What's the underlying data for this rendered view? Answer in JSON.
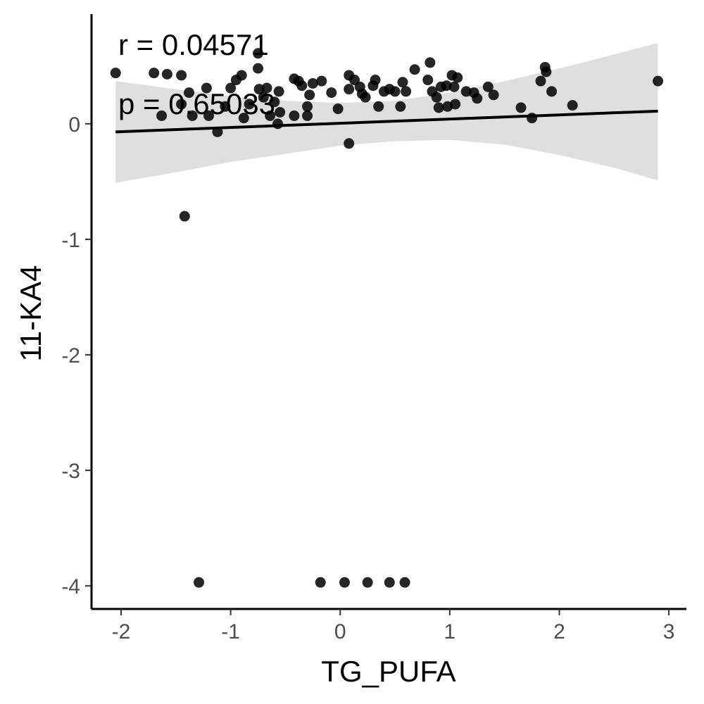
{
  "chart_data": {
    "type": "scatter",
    "title": "",
    "xlabel": "TG_PUFA",
    "ylabel": "11-KA4",
    "xlim": [
      -2.27,
      3.16
    ],
    "ylim": [
      -4.2,
      0.95
    ],
    "x_ticks": [
      -2,
      -1,
      0,
      1,
      2,
      3
    ],
    "x_tick_labels": [
      "-2",
      "-1",
      "0",
      "1",
      "2",
      "3"
    ],
    "y_ticks": [
      0,
      -1,
      -2,
      -3,
      -4
    ],
    "y_tick_labels": [
      "0",
      "-1",
      "-2",
      "-3",
      "-4"
    ],
    "grid": false,
    "legend": "none",
    "annotations": [
      "r = 0.04571",
      "p = 0.65033"
    ],
    "point_color": "#000000",
    "band_color": "#d9d9d9",
    "line_color": "#000000",
    "fit_line": {
      "x": [
        -2.05,
        2.9
      ],
      "y": [
        -0.07,
        0.11
      ]
    },
    "confidence_band": {
      "x": [
        -2.05,
        -1.5,
        -1.0,
        -0.5,
        0.0,
        0.5,
        1.0,
        1.5,
        2.0,
        2.5,
        2.9
      ],
      "upper": [
        0.37,
        0.3,
        0.24,
        0.2,
        0.18,
        0.2,
        0.27,
        0.37,
        0.48,
        0.6,
        0.7
      ],
      "lower": [
        -0.51,
        -0.42,
        -0.33,
        -0.26,
        -0.19,
        -0.15,
        -0.14,
        -0.18,
        -0.27,
        -0.38,
        -0.49
      ]
    },
    "points": [
      {
        "x": -2.05,
        "y": 0.44
      },
      {
        "x": -1.7,
        "y": 0.44
      },
      {
        "x": -1.58,
        "y": 0.43
      },
      {
        "x": -1.45,
        "y": 0.42
      },
      {
        "x": -1.63,
        "y": 0.07
      },
      {
        "x": -1.45,
        "y": 0.17
      },
      {
        "x": -1.38,
        "y": 0.27
      },
      {
        "x": -1.35,
        "y": 0.07
      },
      {
        "x": -1.22,
        "y": 0.31
      },
      {
        "x": -1.2,
        "y": 0.07
      },
      {
        "x": -1.12,
        "y": -0.07
      },
      {
        "x": -1.05,
        "y": 0.15
      },
      {
        "x": -1.0,
        "y": 0.31
      },
      {
        "x": -0.95,
        "y": 0.38
      },
      {
        "x": -0.9,
        "y": 0.42
      },
      {
        "x": -0.88,
        "y": 0.05
      },
      {
        "x": -0.83,
        "y": 0.17
      },
      {
        "x": -0.75,
        "y": 0.61
      },
      {
        "x": -0.75,
        "y": 0.48
      },
      {
        "x": -0.74,
        "y": 0.3
      },
      {
        "x": -0.7,
        "y": 0.23
      },
      {
        "x": -0.67,
        "y": 0.31
      },
      {
        "x": -0.64,
        "y": 0.07
      },
      {
        "x": -0.6,
        "y": 0.19
      },
      {
        "x": -0.57,
        "y": 0.0
      },
      {
        "x": -0.56,
        "y": 0.28
      },
      {
        "x": -0.55,
        "y": 0.1
      },
      {
        "x": -0.42,
        "y": 0.39
      },
      {
        "x": -0.42,
        "y": 0.07
      },
      {
        "x": -0.38,
        "y": 0.37
      },
      {
        "x": -0.35,
        "y": 0.33
      },
      {
        "x": -0.3,
        "y": 0.15
      },
      {
        "x": -0.3,
        "y": 0.07
      },
      {
        "x": -0.28,
        "y": 0.25
      },
      {
        "x": -0.25,
        "y": 0.35
      },
      {
        "x": -0.17,
        "y": 0.37
      },
      {
        "x": -0.08,
        "y": 0.27
      },
      {
        "x": -0.02,
        "y": 0.13
      },
      {
        "x": 0.08,
        "y": 0.42
      },
      {
        "x": 0.08,
        "y": 0.3
      },
      {
        "x": 0.08,
        "y": -0.17
      },
      {
        "x": 0.13,
        "y": 0.38
      },
      {
        "x": 0.18,
        "y": 0.32
      },
      {
        "x": 0.2,
        "y": 0.26
      },
      {
        "x": 0.23,
        "y": 0.23
      },
      {
        "x": 0.3,
        "y": 0.33
      },
      {
        "x": 0.32,
        "y": 0.38
      },
      {
        "x": 0.35,
        "y": 0.15
      },
      {
        "x": 0.4,
        "y": 0.28
      },
      {
        "x": 0.45,
        "y": 0.3
      },
      {
        "x": 0.5,
        "y": 0.28
      },
      {
        "x": 0.55,
        "y": 0.15
      },
      {
        "x": 0.57,
        "y": 0.36
      },
      {
        "x": 0.6,
        "y": 0.28
      },
      {
        "x": 0.68,
        "y": 0.47
      },
      {
        "x": 0.8,
        "y": 0.38
      },
      {
        "x": 0.82,
        "y": 0.53
      },
      {
        "x": 0.84,
        "y": 0.28
      },
      {
        "x": 0.88,
        "y": 0.23
      },
      {
        "x": 0.9,
        "y": 0.14
      },
      {
        "x": 0.92,
        "y": 0.32
      },
      {
        "x": 0.97,
        "y": 0.33
      },
      {
        "x": 0.98,
        "y": 0.15
      },
      {
        "x": 1.02,
        "y": 0.42
      },
      {
        "x": 1.04,
        "y": 0.32
      },
      {
        "x": 1.05,
        "y": 0.17
      },
      {
        "x": 1.07,
        "y": 0.4
      },
      {
        "x": 1.15,
        "y": 0.28
      },
      {
        "x": 1.22,
        "y": 0.27
      },
      {
        "x": 1.25,
        "y": 0.22
      },
      {
        "x": 1.35,
        "y": 0.32
      },
      {
        "x": 1.4,
        "y": 0.25
      },
      {
        "x": 1.65,
        "y": 0.14
      },
      {
        "x": 1.75,
        "y": 0.05
      },
      {
        "x": 1.83,
        "y": 0.37
      },
      {
        "x": 1.87,
        "y": 0.49
      },
      {
        "x": 1.88,
        "y": 0.45
      },
      {
        "x": 1.93,
        "y": 0.28
      },
      {
        "x": 2.12,
        "y": 0.16
      },
      {
        "x": 2.9,
        "y": 0.37
      },
      {
        "x": -1.42,
        "y": -0.8
      },
      {
        "x": -1.29,
        "y": -3.97
      },
      {
        "x": -0.18,
        "y": -3.97
      },
      {
        "x": 0.04,
        "y": -3.97
      },
      {
        "x": 0.25,
        "y": -3.97
      },
      {
        "x": 0.45,
        "y": -3.97
      },
      {
        "x": 0.59,
        "y": -3.97
      }
    ]
  }
}
